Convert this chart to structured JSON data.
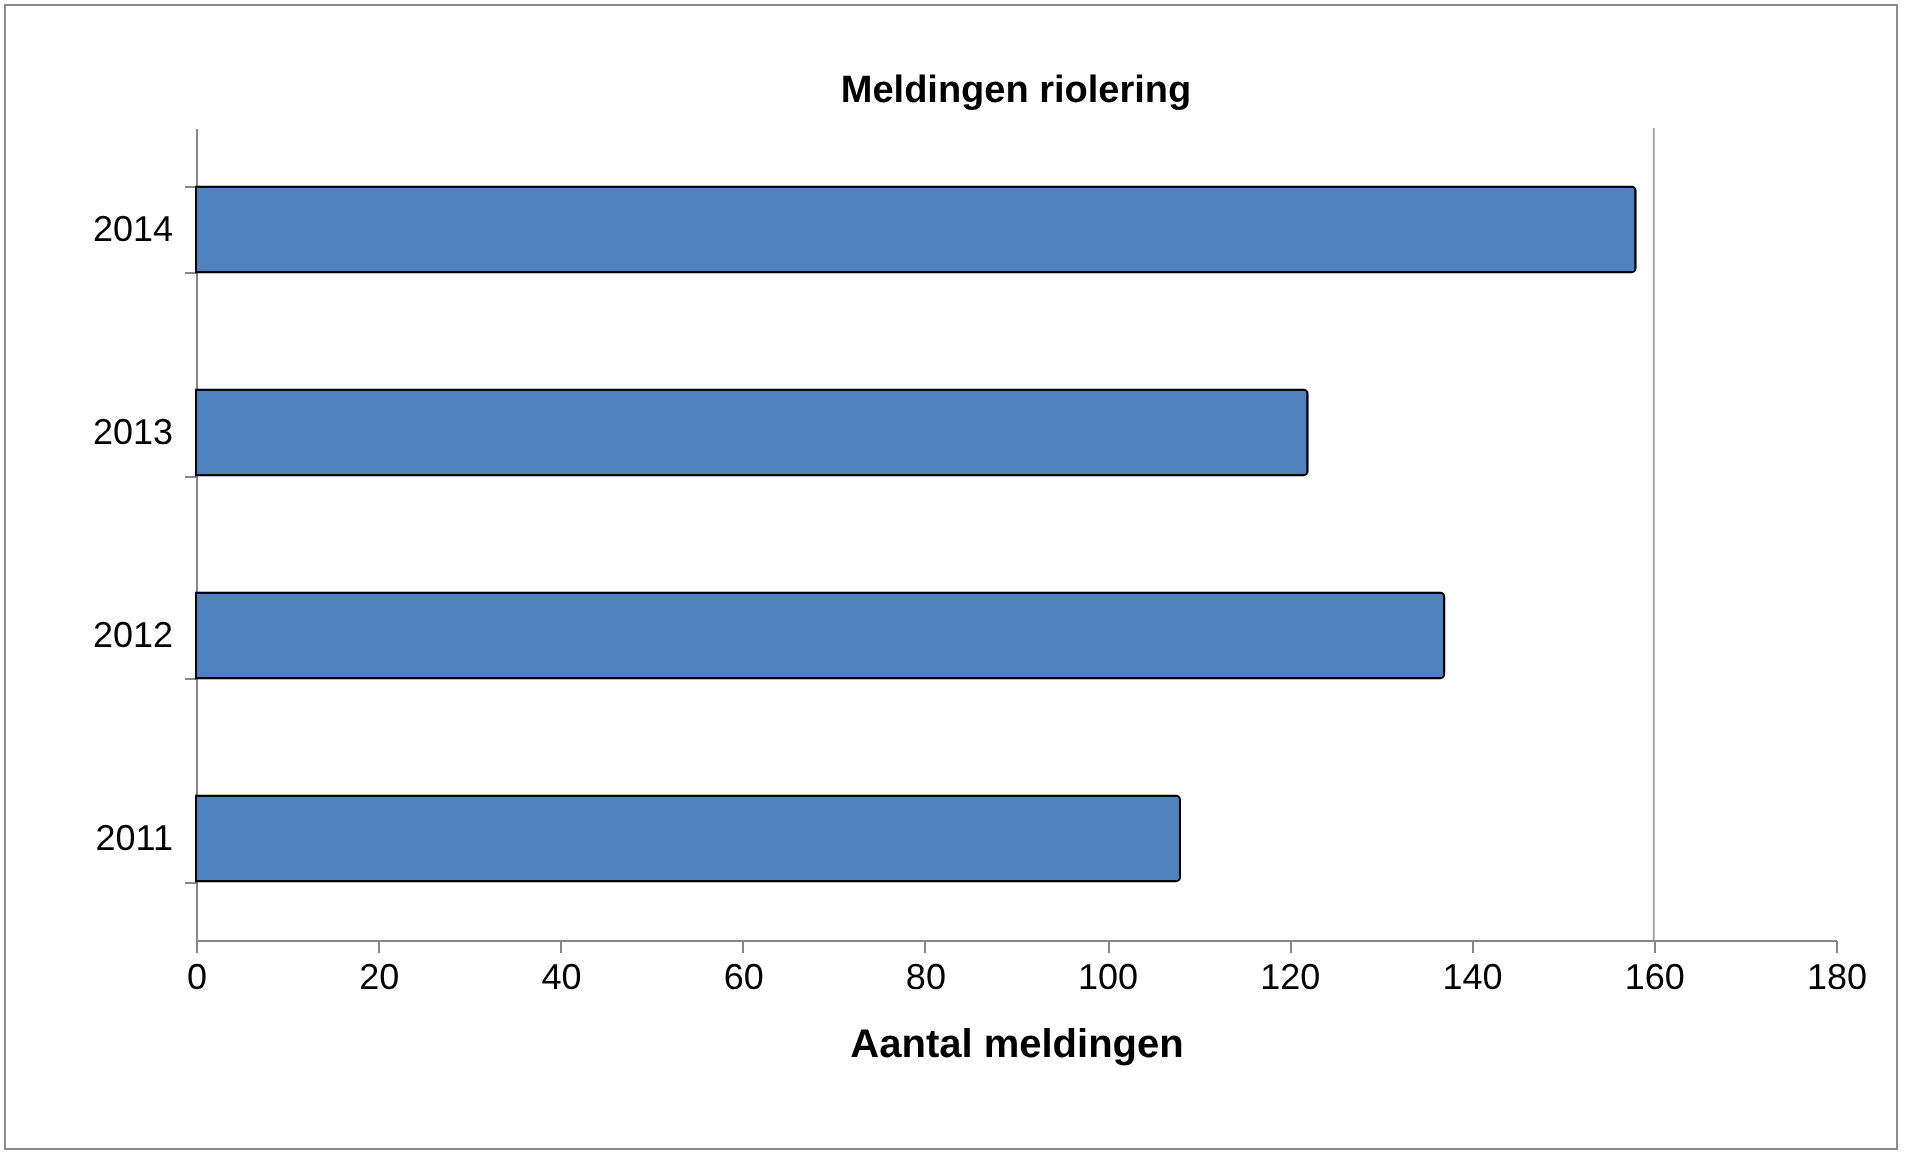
{
  "chart_data": {
    "type": "bar",
    "orientation": "horizontal",
    "title": "Meldingen riolering",
    "xlabel": "Aantal meldingen",
    "categories": [
      "2014",
      "2013",
      "2012",
      "2011"
    ],
    "values": [
      158,
      122,
      137,
      108
    ],
    "color": "#4f81bd",
    "xlim": [
      0,
      180
    ],
    "xticks": [
      0,
      20,
      40,
      60,
      80,
      100,
      120,
      140,
      160,
      180
    ],
    "ref_lines": [
      {
        "axis": "x",
        "value": 160,
        "color": "#a6a6a6"
      }
    ]
  }
}
